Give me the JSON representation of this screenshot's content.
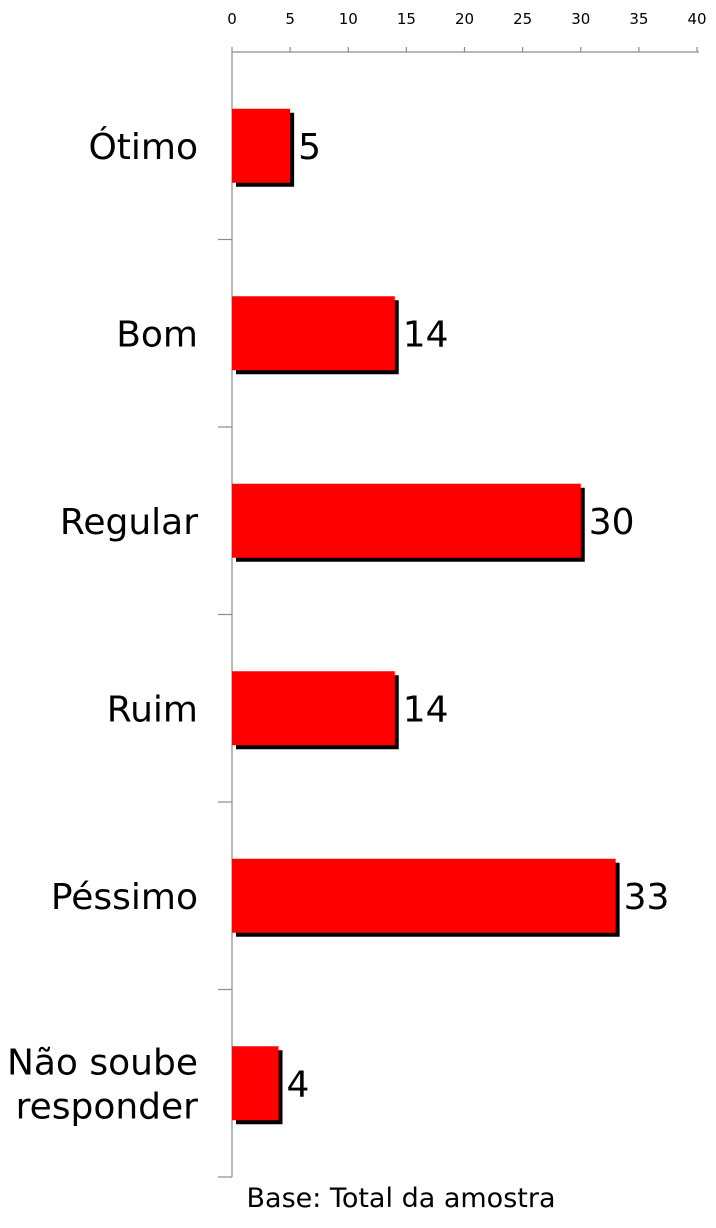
{
  "chart_data": {
    "type": "bar",
    "orientation": "horizontal",
    "categories": [
      "Ótimo",
      "Bom",
      "Regular",
      "Ruim",
      "Péssimo",
      "Não soube responder"
    ],
    "values": [
      5,
      14,
      30,
      14,
      33,
      4
    ],
    "xlim": [
      0,
      40
    ],
    "x_ticks": [
      0,
      5,
      10,
      15,
      20,
      25,
      30,
      35,
      40
    ],
    "x_axis_position": "top",
    "grid": false,
    "legend": "none",
    "bar_color": "#ff0000",
    "shadow_color": "#000000"
  },
  "footnote": "Base: Total da amostra"
}
